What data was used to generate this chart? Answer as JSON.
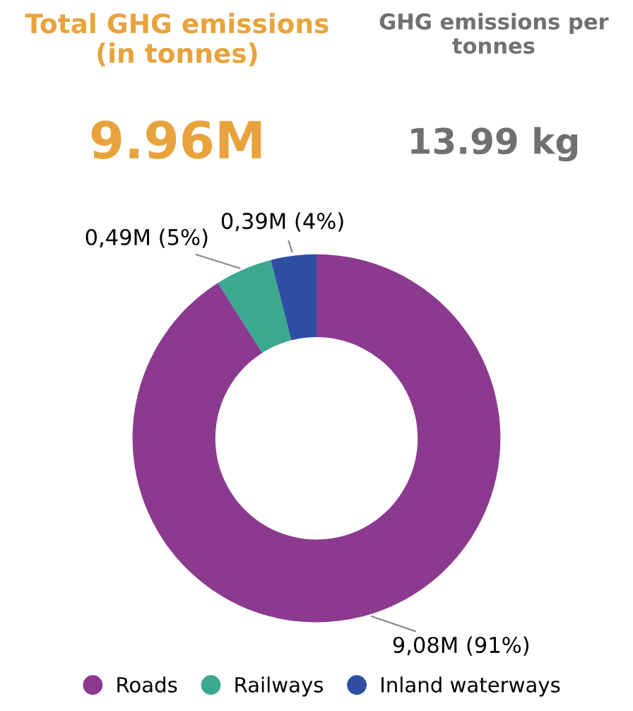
{
  "chart_data": [
    {
      "type": "other",
      "title": "Total GHG emissions (in tonnes)",
      "annotations": [
        "9.96M"
      ]
    },
    {
      "type": "other",
      "title": "GHG emissions per tonnes",
      "annotations": [
        "13.99 kg"
      ]
    },
    {
      "type": "donut",
      "categories": [
        "Roads",
        "Railways",
        "Inland waterways"
      ],
      "values": [
        91,
        5,
        4
      ],
      "colors": [
        "#8b3a8f",
        "#3aa98f",
        "#2e4fa3"
      ],
      "value_labels": [
        "9,08M (91%)",
        "0,49M (5%)",
        "0,39M (4%)"
      ],
      "legend": "bottom"
    }
  ]
}
